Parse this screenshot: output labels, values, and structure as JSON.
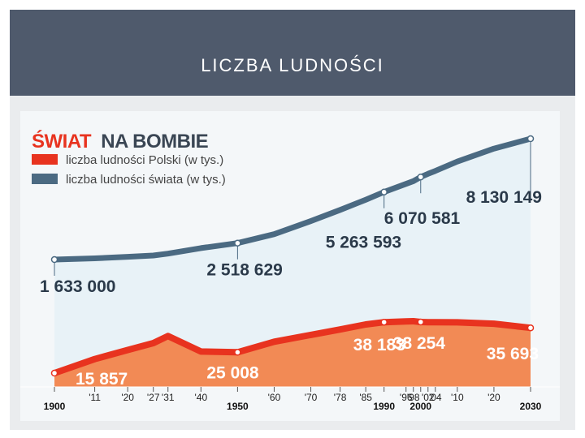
{
  "slide": {
    "title": "LICZBA LUDNOŚCI"
  },
  "colors": {
    "header": "#4f5a6c",
    "world": "#4b6a82",
    "world_fill": "#e8f2f7",
    "poland": "#e8331f",
    "poland_fill": "#f28a55",
    "title_red": "#e8331f",
    "title_dark": "#3a4654"
  },
  "chart_data": {
    "type": "area",
    "title_part1": "ŚWIAT",
    "title_part2": "NA BOMBIE",
    "x": [
      1900,
      1911,
      1920,
      1927,
      1931,
      1940,
      1950,
      1960,
      1970,
      1978,
      1985,
      1990,
      1996,
      1998,
      2000,
      2002,
      2004,
      2010,
      2020,
      2030
    ],
    "x_tick_labels": [
      "1900",
      "'11",
      "'20",
      "'27",
      "'31",
      "'40",
      "1950",
      "'60",
      "'70",
      "'78",
      "'85",
      "1990",
      "'96",
      "'98",
      "2000",
      "'02",
      "'04",
      "'10",
      "'20",
      "2030"
    ],
    "x_major_ticks": [
      "1900",
      "1950",
      "1990",
      "2000",
      "2030"
    ],
    "series": [
      {
        "name": "liczba ludności Polski (w tys.)",
        "values": [
          15857,
          22000,
          26000,
          29000,
          32100,
          25300,
          25008,
          29600,
          32600,
          35000,
          37200,
          38183,
          38500,
          38600,
          38254,
          38200,
          38200,
          38100,
          37500,
          35693
        ],
        "labels": [
          {
            "x": 1900,
            "text": "15 857"
          },
          {
            "x": 1950,
            "text": "25 008"
          },
          {
            "x": 1990,
            "text": "38 183"
          },
          {
            "x": 2000,
            "text": "38 254"
          },
          {
            "x": 2030,
            "text": "35 693"
          }
        ]
      },
      {
        "name": "liczba ludności świata (w tys.)",
        "values": [
          1633000,
          1700000,
          1780000,
          1850000,
          1950000,
          2250000,
          2518629,
          3000000,
          3700000,
          4300000,
          4850000,
          5263593,
          5700000,
          5850000,
          6070581,
          6240000,
          6400000,
          6900000,
          7600000,
          8130149
        ],
        "labels": [
          {
            "x": 1900,
            "text": "1 633 000"
          },
          {
            "x": 1950,
            "text": "2 518 629"
          },
          {
            "x": 1990,
            "text": "5 263 593"
          },
          {
            "x": 2000,
            "text": "6 070 581"
          },
          {
            "x": 2030,
            "text": "8 130 149"
          }
        ]
      }
    ],
    "grid": false,
    "legend_position": "top-left"
  }
}
